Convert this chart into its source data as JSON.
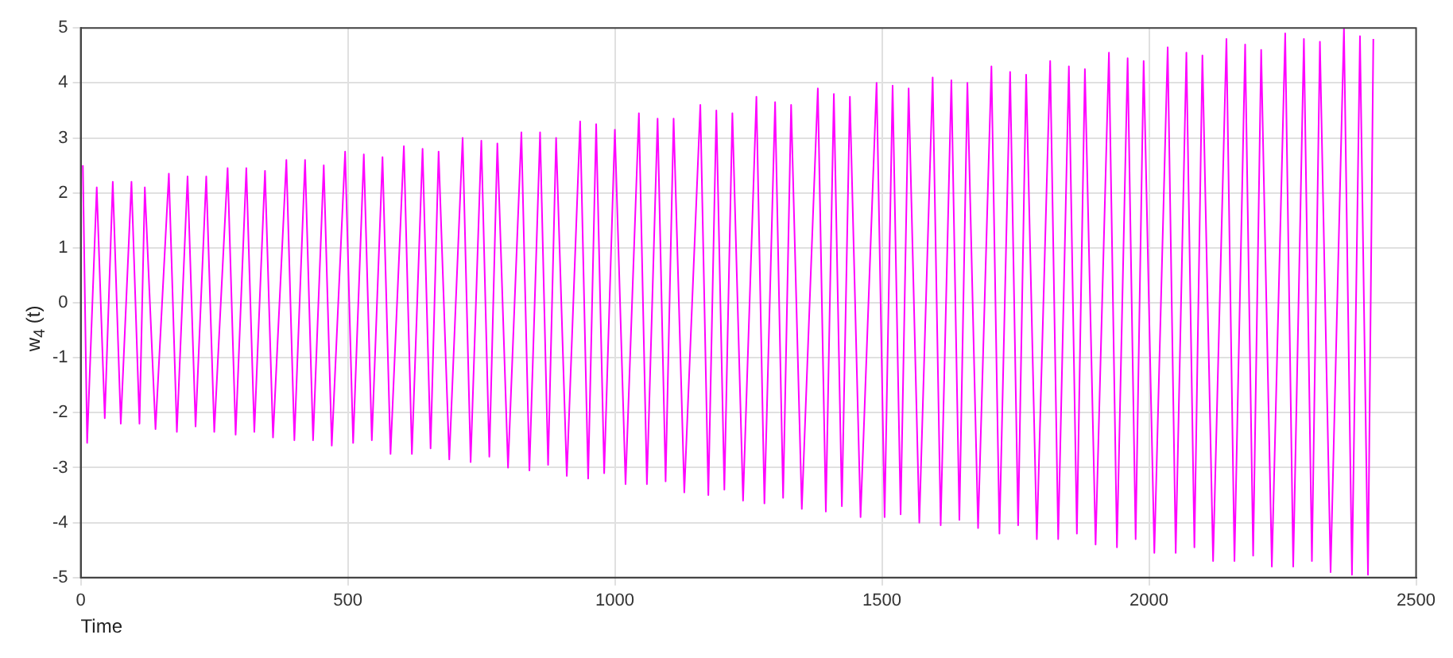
{
  "chart_data": {
    "type": "line",
    "xlabel": "Time",
    "ylabel": "w$_{4}$ (t)",
    "xlim": [
      0,
      2500
    ],
    "xticks": [
      0,
      500,
      1000,
      1500,
      2000,
      2500
    ],
    "ylim": [
      -5,
      5
    ],
    "yticks": [
      -5,
      -4,
      -3,
      -2,
      -1,
      0,
      1,
      2,
      3,
      4,
      5
    ],
    "grid": true,
    "marker": "none",
    "line_style": "solid",
    "series": [
      {
        "color": "#ff00ff",
        "x": [
          4,
          12,
          30,
          45,
          60,
          75,
          95,
          110,
          120,
          140,
          165,
          180,
          200,
          215,
          235,
          250,
          275,
          290,
          310,
          325,
          345,
          360,
          385,
          400,
          420,
          435,
          455,
          470,
          495,
          510,
          530,
          545,
          565,
          580,
          605,
          620,
          640,
          655,
          670,
          690,
          715,
          730,
          750,
          765,
          780,
          800,
          825,
          840,
          860,
          875,
          890,
          910,
          935,
          950,
          965,
          980,
          1000,
          1020,
          1045,
          1060,
          1080,
          1095,
          1110,
          1130,
          1160,
          1175,
          1190,
          1205,
          1220,
          1240,
          1265,
          1280,
          1300,
          1315,
          1330,
          1350,
          1380,
          1395,
          1410,
          1425,
          1440,
          1460,
          1490,
          1505,
          1520,
          1535,
          1550,
          1570,
          1595,
          1610,
          1630,
          1645,
          1660,
          1680,
          1705,
          1720,
          1740,
          1755,
          1770,
          1790,
          1815,
          1830,
          1850,
          1865,
          1880,
          1900,
          1925,
          1940,
          1960,
          1975,
          1990,
          2010,
          2035,
          2050,
          2070,
          2085,
          2100,
          2120,
          2145,
          2160,
          2180,
          2195,
          2210,
          2230,
          2255,
          2270,
          2290,
          2305,
          2320,
          2340,
          2365,
          2380,
          2395,
          2410,
          2420
        ],
        "values": [
          2.5,
          -2.55,
          2.1,
          -2.1,
          2.2,
          -2.2,
          2.2,
          -2.2,
          2.1,
          -2.3,
          2.35,
          -2.35,
          2.3,
          -2.25,
          2.3,
          -2.35,
          2.45,
          -2.4,
          2.45,
          -2.35,
          2.4,
          -2.45,
          2.6,
          -2.5,
          2.6,
          -2.5,
          2.5,
          -2.6,
          2.75,
          -2.55,
          2.7,
          -2.5,
          2.65,
          -2.75,
          2.85,
          -2.75,
          2.8,
          -2.65,
          2.75,
          -2.85,
          3.0,
          -2.9,
          2.95,
          -2.8,
          2.9,
          -3.0,
          3.1,
          -3.05,
          3.1,
          -2.95,
          3.0,
          -3.15,
          3.3,
          -3.2,
          3.25,
          -3.1,
          3.15,
          -3.3,
          3.45,
          -3.3,
          3.35,
          -3.25,
          3.35,
          -3.45,
          3.6,
          -3.5,
          3.5,
          -3.4,
          3.45,
          -3.6,
          3.75,
          -3.65,
          3.65,
          -3.55,
          3.6,
          -3.75,
          3.9,
          -3.8,
          3.8,
          -3.7,
          3.75,
          -3.9,
          4.0,
          -3.9,
          3.95,
          -3.85,
          3.9,
          -4.0,
          4.1,
          -4.05,
          4.05,
          -3.95,
          4.0,
          -4.1,
          4.3,
          -4.2,
          4.2,
          -4.05,
          4.15,
          -4.3,
          4.4,
          -4.3,
          4.3,
          -4.2,
          4.25,
          -4.4,
          4.55,
          -4.45,
          4.45,
          -4.3,
          4.4,
          -4.55,
          4.65,
          -4.55,
          4.55,
          -4.45,
          4.5,
          -4.7,
          4.8,
          -4.7,
          4.7,
          -4.6,
          4.6,
          -4.8,
          4.9,
          -4.8,
          4.8,
          -4.7,
          4.75,
          -4.9,
          5.0,
          -4.95,
          4.85,
          -4.95,
          4.8
        ]
      }
    ]
  }
}
